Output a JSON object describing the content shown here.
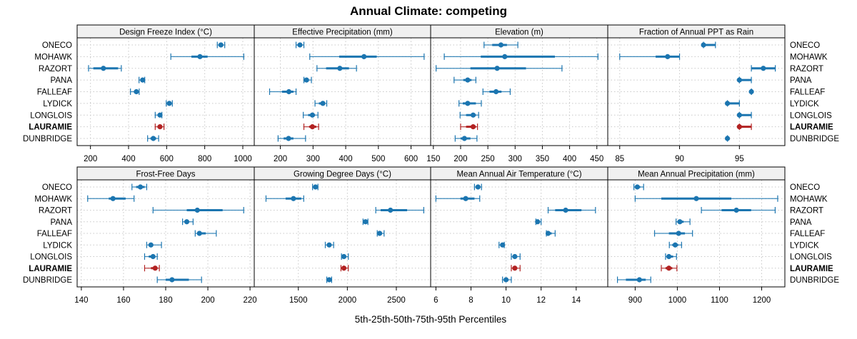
{
  "chart_data": {
    "type": "dotplot-percentile",
    "title": "Annual Climate: competing",
    "xlabel": "5th-25th-50th-75th-95th Percentiles",
    "categories": [
      "ONECO",
      "MOHAWK",
      "RAZORT",
      "PANA",
      "FALLEAF",
      "LYDICK",
      "LONGLOIS",
      "LAURAMIE",
      "DUNBRIDGE"
    ],
    "highlight": "LAURAMIE",
    "colors": {
      "default": "#1B75B0",
      "highlight": "#B22222",
      "strip": "#F0F0F0",
      "grid": "#C8C8C8"
    },
    "grid": true,
    "panels": [
      {
        "name": "Design Freeze Index (°C)",
        "xlim": [
          130,
          1060
        ],
        "ticks": [
          200,
          400,
          600,
          800,
          1000
        ],
        "data": {
          "ONECO": [
            866,
            875,
            885,
            893,
            905
          ],
          "MOHAWK": [
            622,
            730,
            775,
            815,
            1005
          ],
          "RAZORT": [
            190,
            215,
            268,
            345,
            362
          ],
          "PANA": [
            455,
            462,
            474,
            479,
            485
          ],
          "FALLEAF": [
            410,
            428,
            441,
            450,
            456
          ],
          "LYDICK": [
            598,
            606,
            614,
            622,
            630
          ],
          "LONGLOIS": [
            540,
            555,
            565,
            570,
            575
          ],
          "LAURAMIE": [
            540,
            552,
            565,
            575,
            586
          ],
          "DUNBRIDGE": [
            500,
            515,
            530,
            545,
            558
          ]
        }
      },
      {
        "name": "Effective Precipitation (mm)",
        "xlim": [
          120,
          660
        ],
        "ticks": [
          200,
          300,
          400,
          500,
          600
        ],
        "data": {
          "ONECO": [
            248,
            252,
            260,
            266,
            272
          ],
          "MOHAWK": [
            290,
            380,
            456,
            495,
            640
          ],
          "RAZORT": [
            312,
            340,
            382,
            410,
            433
          ],
          "PANA": [
            272,
            276,
            280,
            285,
            295
          ],
          "FALLEAF": [
            167,
            205,
            226,
            240,
            248
          ],
          "LYDICK": [
            306,
            318,
            330,
            337,
            342
          ],
          "LONGLOIS": [
            270,
            285,
            298,
            306,
            315
          ],
          "LAURAMIE": [
            272,
            288,
            298,
            310,
            317
          ],
          "DUNBRIDGE": [
            193,
            210,
            225,
            240,
            277
          ]
        }
      },
      {
        "name": "Elevation (m)",
        "xlim": [
          145,
          470
        ],
        "ticks": [
          150,
          200,
          250,
          300,
          350,
          400,
          450
        ],
        "data": {
          "ONECO": [
            243,
            258,
            274,
            285,
            305
          ],
          "MOHAWK": [
            170,
            237,
            281,
            373,
            452
          ],
          "RAZORT": [
            155,
            218,
            267,
            320,
            386
          ],
          "PANA": [
            188,
            205,
            213,
            220,
            228
          ],
          "FALLEAF": [
            241,
            253,
            265,
            275,
            291
          ],
          "LYDICK": [
            197,
            204,
            213,
            228,
            238
          ],
          "LONGLOIS": [
            199,
            210,
            223,
            228,
            233
          ],
          "LAURAMIE": [
            200,
            210,
            223,
            228,
            231
          ],
          "DUNBRIDGE": [
            190,
            200,
            207,
            218,
            230
          ]
        }
      },
      {
        "name": "Fraction of Annual PPT as Rain",
        "xlim": [
          84,
          98.8
        ],
        "ticks": [
          85,
          90,
          95
        ],
        "data": {
          "ONECO": [
            92,
            92,
            92,
            93,
            93
          ],
          "MOHAWK": [
            85,
            88,
            89,
            90,
            90
          ],
          "RAZORT": [
            96,
            96,
            97,
            98,
            98
          ],
          "PANA": [
            95,
            95,
            95,
            96,
            96
          ],
          "FALLEAF": [
            96,
            96,
            96,
            96,
            96
          ],
          "LYDICK": [
            94,
            94,
            94,
            95,
            95
          ],
          "LONGLOIS": [
            95,
            95,
            95,
            96,
            96
          ],
          "LAURAMIE": [
            95,
            95,
            95,
            96,
            96
          ],
          "DUNBRIDGE": [
            94,
            94,
            94,
            94,
            94
          ]
        }
      },
      {
        "name": "Frost-Free Days",
        "xlim": [
          138,
          222
        ],
        "ticks": [
          140,
          160,
          180,
          200,
          220
        ],
        "data": {
          "ONECO": [
            164,
            166,
            168,
            170,
            171
          ],
          "MOHAWK": [
            143,
            153,
            155,
            161,
            165
          ],
          "RAZORT": [
            174,
            190,
            195,
            207,
            217
          ],
          "PANA": [
            188,
            189,
            190,
            191,
            193
          ],
          "FALLEAF": [
            194,
            195,
            196,
            199,
            204
          ],
          "LYDICK": [
            171,
            172,
            173,
            174,
            178
          ],
          "LONGLOIS": [
            170,
            172,
            174,
            175,
            176
          ],
          "LAURAMIE": [
            170,
            173,
            175,
            176,
            177
          ],
          "DUNBRIDGE": [
            176,
            180,
            183,
            191,
            197
          ]
        }
      },
      {
        "name": "Growing Degree Days (°C)",
        "xlim": [
          1050,
          2850
        ],
        "ticks": [
          1500,
          2000,
          2500
        ],
        "data": {
          "ONECO": [
            1645,
            1660,
            1675,
            1690,
            1700
          ],
          "MOHAWK": [
            1170,
            1370,
            1450,
            1530,
            1555
          ],
          "RAZORT": [
            2290,
            2340,
            2440,
            2610,
            2780
          ],
          "PANA": [
            2160,
            2170,
            2185,
            2195,
            2210
          ],
          "FALLEAF": [
            2305,
            2315,
            2330,
            2345,
            2375
          ],
          "LYDICK": [
            1775,
            1800,
            1815,
            1835,
            1860
          ],
          "LONGLOIS": [
            1940,
            1950,
            1965,
            1980,
            2010
          ],
          "LAURAMIE": [
            1935,
            1950,
            1965,
            1985,
            2010
          ],
          "DUNBRIDGE": [
            1790,
            1805,
            1815,
            1830,
            1840
          ]
        }
      },
      {
        "name": "Mean Annual Air Temperature (°C)",
        "xlim": [
          5.7,
          15.8
        ],
        "ticks": [
          6,
          8,
          10,
          12,
          14
        ],
        "data": {
          "ONECO": [
            8.2,
            8.3,
            8.4,
            8.5,
            8.6
          ],
          "MOHAWK": [
            6.0,
            7.4,
            7.7,
            8.2,
            8.5
          ],
          "RAZORT": [
            12.4,
            12.8,
            13.4,
            14.3,
            15.1
          ],
          "PANA": [
            11.7,
            11.75,
            11.8,
            11.9,
            12.0
          ],
          "FALLEAF": [
            12.3,
            12.35,
            12.4,
            12.6,
            12.8
          ],
          "LYDICK": [
            9.6,
            9.7,
            9.8,
            9.9,
            9.9
          ],
          "LONGLOIS": [
            10.3,
            10.4,
            10.5,
            10.6,
            10.8
          ],
          "LAURAMIE": [
            10.3,
            10.4,
            10.5,
            10.6,
            10.8
          ],
          "DUNBRIDGE": [
            9.8,
            9.9,
            10.0,
            10.1,
            10.3
          ]
        }
      },
      {
        "name": "Mean Annual Precipitation (mm)",
        "xlim": [
          835,
          1255
        ],
        "ticks": [
          900,
          1000,
          1100,
          1200
        ],
        "data": {
          "ONECO": [
            897,
            900,
            905,
            912,
            920
          ],
          "MOHAWK": [
            900,
            962,
            1045,
            1128,
            1238
          ],
          "RAZORT": [
            1057,
            1105,
            1140,
            1175,
            1232
          ],
          "PANA": [
            997,
            1000,
            1006,
            1015,
            1030
          ],
          "FALLEAF": [
            946,
            980,
            1003,
            1018,
            1036
          ],
          "LYDICK": [
            981,
            988,
            995,
            1002,
            1010
          ],
          "LONGLOIS": [
            972,
            976,
            980,
            990,
            998
          ],
          "LAURAMIE": [
            962,
            972,
            980,
            988,
            999
          ],
          "DUNBRIDGE": [
            858,
            878,
            910,
            925,
            937
          ]
        }
      }
    ]
  }
}
